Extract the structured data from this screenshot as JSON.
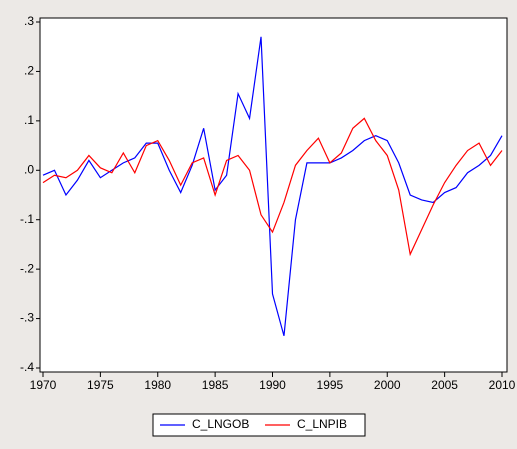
{
  "chart_data": {
    "type": "line",
    "x": [
      1970,
      1971,
      1972,
      1973,
      1974,
      1975,
      1976,
      1977,
      1978,
      1979,
      1980,
      1981,
      1982,
      1983,
      1984,
      1985,
      1986,
      1987,
      1988,
      1989,
      1990,
      1991,
      1992,
      1993,
      1994,
      1995,
      1996,
      1997,
      1998,
      1999,
      2000,
      2001,
      2002,
      2003,
      2004,
      2005,
      2006,
      2007,
      2008,
      2009,
      2010
    ],
    "series": [
      {
        "name": "C_LNGOB",
        "color": "#0000ff",
        "values": [
          -0.01,
          0.0,
          -0.05,
          -0.02,
          0.02,
          -0.015,
          0.0,
          0.015,
          0.025,
          0.055,
          0.055,
          0.0,
          -0.045,
          0.01,
          0.085,
          -0.04,
          -0.01,
          0.155,
          0.105,
          0.27,
          -0.25,
          -0.335,
          -0.1,
          0.015,
          0.015,
          0.015,
          0.025,
          0.04,
          0.06,
          0.07,
          0.06,
          0.015,
          -0.05,
          -0.06,
          -0.065,
          -0.045,
          -0.035,
          -0.005,
          0.01,
          0.03,
          0.07
        ]
      },
      {
        "name": "C_LNPIB",
        "color": "#ff0000",
        "values": [
          -0.025,
          -0.01,
          -0.015,
          0.0,
          0.03,
          0.005,
          -0.005,
          0.035,
          -0.005,
          0.05,
          0.06,
          0.02,
          -0.03,
          0.015,
          0.025,
          -0.05,
          0.02,
          0.03,
          0.0,
          -0.09,
          -0.125,
          -0.065,
          0.01,
          0.04,
          0.065,
          0.015,
          0.035,
          0.085,
          0.105,
          0.06,
          0.03,
          -0.04,
          -0.17,
          -0.12,
          -0.07,
          -0.025,
          0.01,
          0.04,
          0.055,
          0.01,
          0.04
        ]
      }
    ],
    "xlim": [
      1970,
      2010
    ],
    "xticks": [
      1970,
      1975,
      1980,
      1985,
      1990,
      1995,
      2000,
      2005,
      2010
    ],
    "ylim": [
      -0.4,
      0.3
    ],
    "yticks": [
      {
        "value": -0.4,
        "label": "-.4"
      },
      {
        "value": -0.3,
        "label": "-.3"
      },
      {
        "value": -0.2,
        "label": "-.2"
      },
      {
        "value": -0.1,
        "label": "-.1"
      },
      {
        "value": 0,
        "label": ".0"
      },
      {
        "value": 0.1,
        "label": ".1"
      },
      {
        "value": 0.2,
        "label": ".2"
      },
      {
        "value": 0.3,
        "label": ".3"
      }
    ],
    "legend": "bottom"
  }
}
